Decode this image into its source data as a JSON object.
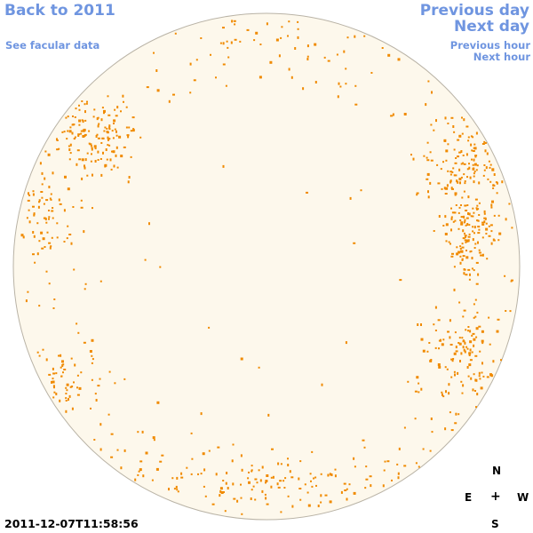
{
  "nav": {
    "back_label": "Back to 2011",
    "facular_label": "See facular data",
    "prev_day_label": "Previous day",
    "next_day_label": "Next day",
    "prev_hour_label": "Previous hour",
    "next_hour_label": "Next hour"
  },
  "timestamp": "2011-12-07T11:58:56",
  "compass": {
    "north": "N",
    "east": "E",
    "center": "+",
    "west": "W",
    "south": "S"
  },
  "colors": {
    "link": "#6f95e0",
    "disc_fill": "#fdf8ec",
    "disc_border": "#b9b3a6",
    "facula": "#f08a00"
  },
  "sun_disc": {
    "facula_clusters": [
      {
        "region": "upper-left",
        "density": "high"
      },
      {
        "region": "left",
        "density": "medium"
      },
      {
        "region": "lower-left",
        "density": "medium"
      },
      {
        "region": "upper-right",
        "density": "high"
      },
      {
        "region": "right",
        "density": "high"
      },
      {
        "region": "lower-right",
        "density": "medium"
      },
      {
        "region": "bottom",
        "density": "low"
      },
      {
        "region": "top",
        "density": "low"
      }
    ]
  }
}
